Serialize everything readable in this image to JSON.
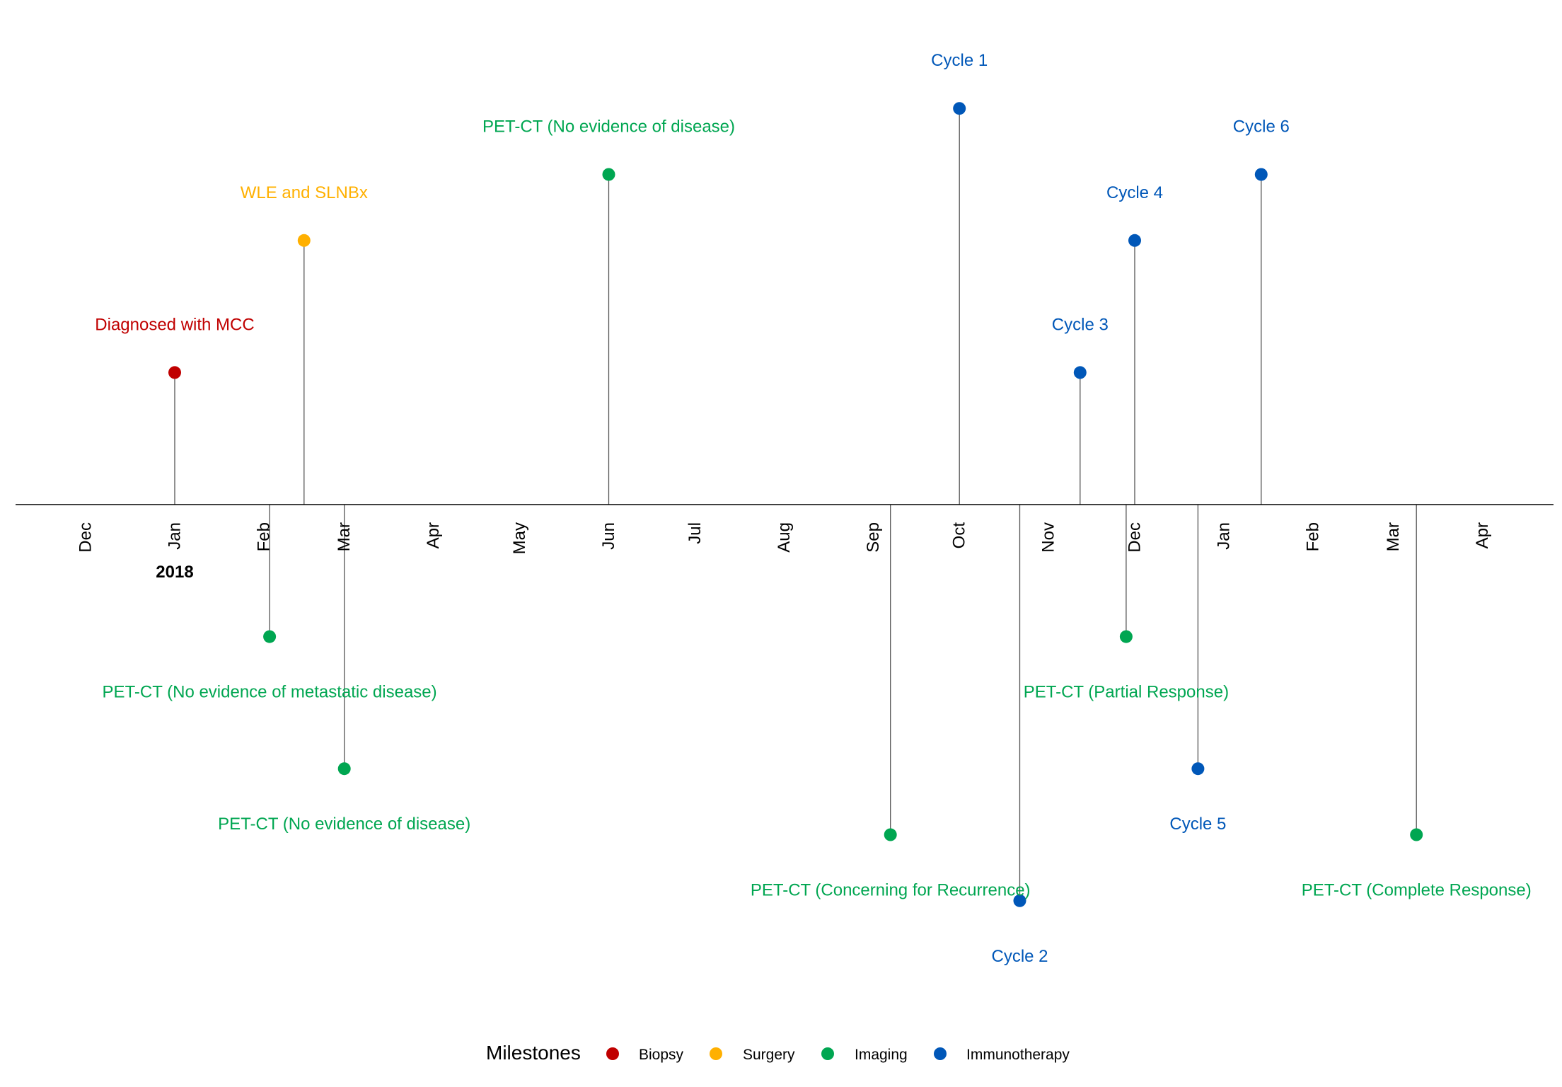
{
  "chart_data": {
    "type": "timeline",
    "x_axis": {
      "months": [
        {
          "label": "Dec",
          "date": "2017-12-01"
        },
        {
          "label": "Jan",
          "date": "2018-01-01"
        },
        {
          "label": "Feb",
          "date": "2018-02-01"
        },
        {
          "label": "Mar",
          "date": "2018-03-01"
        },
        {
          "label": "Apr",
          "date": "2018-04-01"
        },
        {
          "label": "May",
          "date": "2018-05-01"
        },
        {
          "label": "Jun",
          "date": "2018-06-01"
        },
        {
          "label": "Jul",
          "date": "2018-07-01"
        },
        {
          "label": "Aug",
          "date": "2018-08-01"
        },
        {
          "label": "Sep",
          "date": "2018-09-01"
        },
        {
          "label": "Oct",
          "date": "2018-10-01"
        },
        {
          "label": "Nov",
          "date": "2018-11-01"
        },
        {
          "label": "Dec",
          "date": "2018-12-01"
        },
        {
          "label": "Jan",
          "date": "2019-01-01"
        },
        {
          "label": "Feb",
          "date": "2019-02-01"
        },
        {
          "label": "Mar",
          "date": "2019-03-01"
        },
        {
          "label": "Apr",
          "date": "2019-04-01"
        }
      ],
      "year_labels": [
        {
          "label": "2018",
          "date": "2018-01-01"
        }
      ]
    },
    "events": [
      {
        "date": "2018-01-01",
        "label": "Diagnosed with MCC",
        "category": "Biopsy",
        "level": 2
      },
      {
        "date": "2018-02-03",
        "label": "PET-CT (No evidence of metastatic disease)",
        "category": "Imaging",
        "level": -2
      },
      {
        "date": "2018-02-15",
        "label": "WLE and SLNBx",
        "category": "Surgery",
        "level": 4
      },
      {
        "date": "2018-03-01",
        "label": "PET-CT (No evidence of disease)",
        "category": "Imaging",
        "level": -4
      },
      {
        "date": "2018-06-01",
        "label": "PET-CT (No evidence of disease)",
        "category": "Imaging",
        "level": 5
      },
      {
        "date": "2018-09-07",
        "label": "PET-CT (Concerning for Recurrence)",
        "category": "Imaging",
        "level": -5
      },
      {
        "date": "2018-10-01",
        "label": "Cycle 1",
        "category": "Immunotherapy",
        "level": 6
      },
      {
        "date": "2018-10-22",
        "label": "Cycle 2",
        "category": "Immunotherapy",
        "level": -6
      },
      {
        "date": "2018-11-12",
        "label": "Cycle 3",
        "category": "Immunotherapy",
        "level": 2
      },
      {
        "date": "2018-11-28",
        "label": "PET-CT (Partial Response)",
        "category": "Imaging",
        "level": -2
      },
      {
        "date": "2018-12-01",
        "label": "Cycle 4",
        "category": "Immunotherapy",
        "level": 4
      },
      {
        "date": "2018-12-23",
        "label": "Cycle 5",
        "category": "Immunotherapy",
        "level": -4
      },
      {
        "date": "2019-01-14",
        "label": "Cycle 6",
        "category": "Immunotherapy",
        "level": 5
      },
      {
        "date": "2019-03-09",
        "label": "PET-CT (Complete Response)",
        "category": "Imaging",
        "level": -5
      }
    ],
    "legend": {
      "title": "Milestones",
      "position": "bottom",
      "items": [
        {
          "name": "Biopsy",
          "color": "#C00000"
        },
        {
          "name": "Surgery",
          "color": "#FFB000"
        },
        {
          "name": "Imaging",
          "color": "#00A651"
        },
        {
          "name": "Immunotherapy",
          "color": "#0057B8"
        }
      ]
    }
  }
}
